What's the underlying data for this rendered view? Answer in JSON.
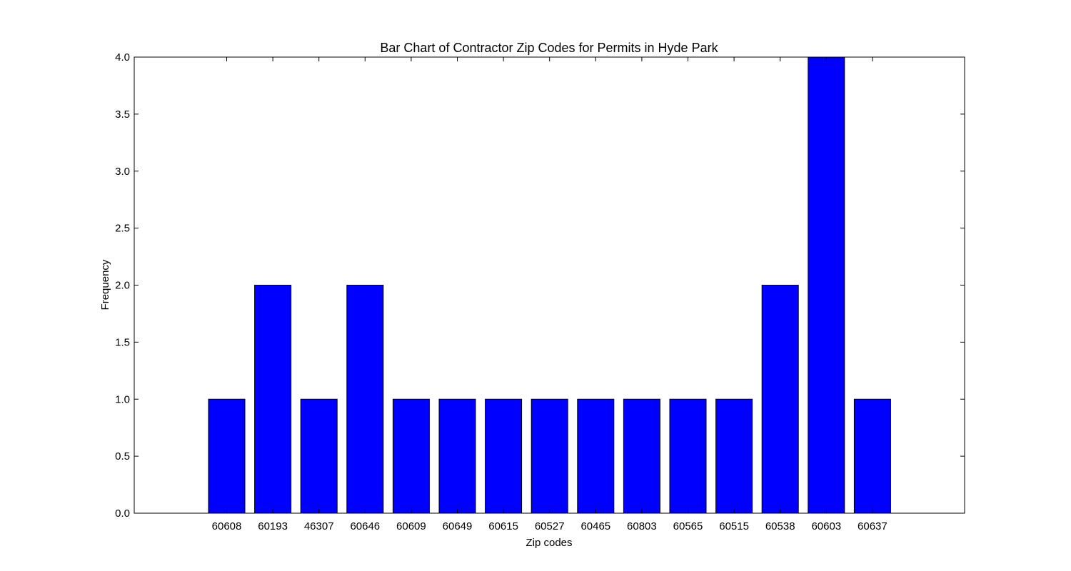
{
  "chart_data": {
    "type": "bar",
    "title": "Bar Chart of Contractor Zip Codes for Permits in Hyde Park",
    "xlabel": "Zip codes",
    "ylabel": "Frequency",
    "categories": [
      "60608",
      "60193",
      "46307",
      "60646",
      "60609",
      "60649",
      "60615",
      "60527",
      "60465",
      "60803",
      "60565",
      "60515",
      "60538",
      "60603",
      "60637"
    ],
    "values": [
      1,
      2,
      1,
      2,
      1,
      1,
      1,
      1,
      1,
      1,
      1,
      1,
      2,
      4,
      1
    ],
    "ylim": [
      0,
      4
    ],
    "yticks": [
      "0.0",
      "0.5",
      "1.0",
      "1.5",
      "2.0",
      "2.5",
      "3.0",
      "3.5",
      "4.0"
    ],
    "grid": false,
    "bar_color": "#0000ff",
    "edge_color": "#000000"
  }
}
